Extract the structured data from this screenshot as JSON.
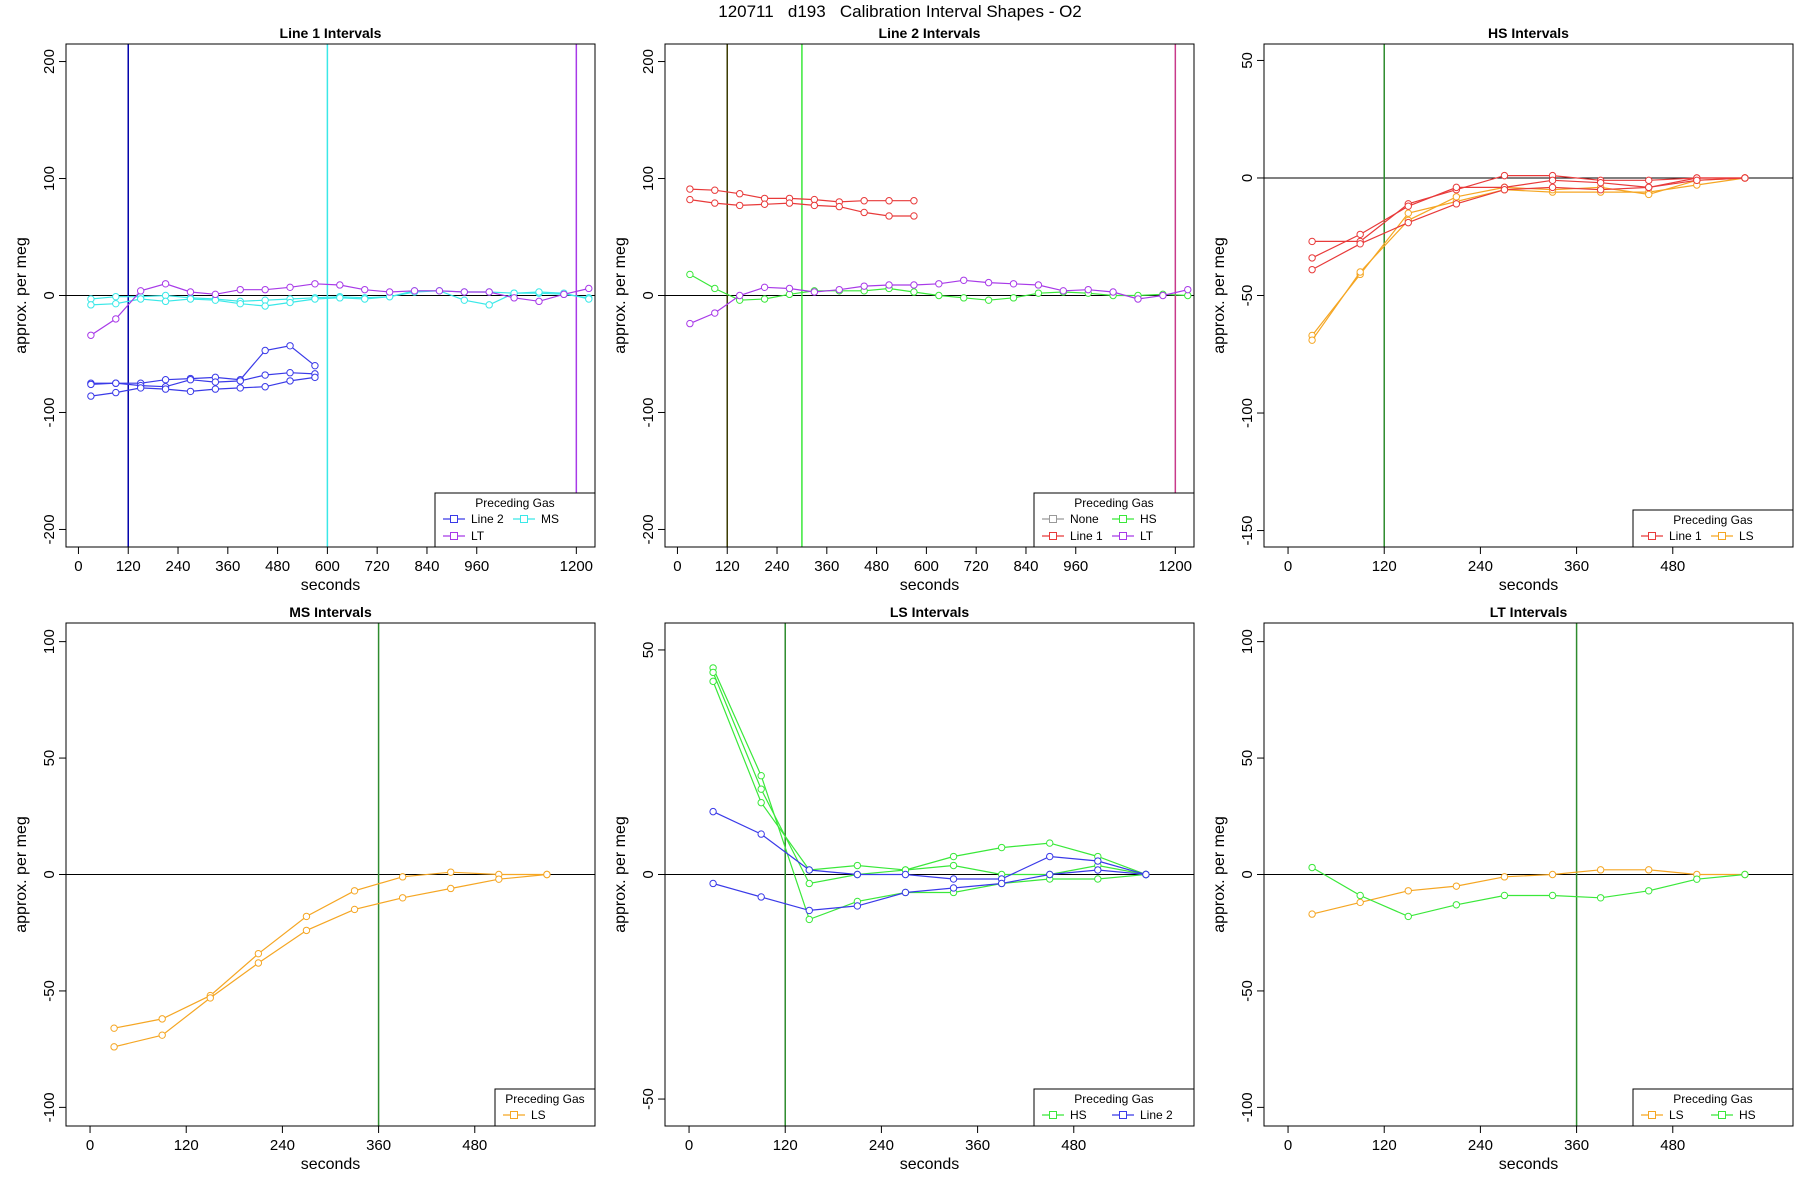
{
  "figure_title": "120711   d193   Calibration Interval Shapes - O2",
  "colors": {
    "Line 1": "#e83a3a",
    "Line 2": "#3a3ae8",
    "HS": "#3ae83a",
    "MS": "#3ae8e8",
    "LS": "#f5a623",
    "LT": "#a83ae8",
    "None": "#999999"
  },
  "chart_data": [
    {
      "type": "line",
      "title": "Line 1 Intervals",
      "xlabel": "seconds",
      "ylabel": "approx. per meg",
      "xlim": [
        -30,
        1245
      ],
      "ylim": [
        -215,
        215
      ],
      "yticks": [
        -200,
        -100,
        0,
        100,
        200
      ],
      "xticks": [
        0,
        120,
        240,
        360,
        480,
        600,
        720,
        840,
        960,
        1200
      ],
      "hline": 0,
      "vlines": [
        {
          "x": 120,
          "color": "#0000aa"
        },
        {
          "x": 600,
          "color": "#3ae8e8"
        },
        {
          "x": 1200,
          "color": "#a83ae8"
        }
      ],
      "legend": {
        "title": "Preceding Gas",
        "position": "bottom-right",
        "cols": 2,
        "items": [
          [
            "Line 2",
            "MS"
          ],
          [
            "LT"
          ]
        ]
      },
      "series": [
        {
          "name": "Line 2",
          "x": [
            30,
            90,
            150,
            210,
            270,
            330,
            390,
            450,
            510,
            570
          ],
          "y": [
            -75,
            -75,
            -75,
            -72,
            -71,
            -70,
            -72,
            -47,
            -43,
            -60
          ]
        },
        {
          "name": "Line 2",
          "x": [
            30,
            90,
            150,
            210,
            270,
            330,
            390,
            450,
            510,
            570
          ],
          "y": [
            -76,
            -75,
            -77,
            -78,
            -72,
            -74,
            -73,
            -68,
            -66,
            -67
          ]
        },
        {
          "name": "Line 2",
          "x": [
            30,
            90,
            150,
            210,
            270,
            330,
            390,
            450,
            510,
            570
          ],
          "y": [
            -86,
            -83,
            -79,
            -80,
            -82,
            -80,
            -79,
            -78,
            -73,
            -70
          ]
        },
        {
          "name": "MS",
          "x": [
            30,
            90,
            150,
            210,
            270,
            330,
            390,
            450,
            510,
            570,
            630,
            690,
            750,
            810,
            870,
            930,
            990,
            1050,
            1110,
            1170,
            1230
          ],
          "y": [
            -3,
            -1,
            -1,
            0,
            -2,
            -3,
            -5,
            -4,
            -3,
            -2,
            -1,
            -2,
            -1,
            4,
            4,
            3,
            3,
            2,
            2,
            1,
            -2
          ]
        },
        {
          "name": "MS",
          "x": [
            30,
            90,
            150,
            210,
            270,
            330,
            390,
            450,
            510,
            570,
            630,
            690,
            750,
            810,
            870,
            930,
            990,
            1050,
            1110,
            1170,
            1230
          ],
          "y": [
            -8,
            -7,
            -3,
            -5,
            -3,
            -4,
            -7,
            -9,
            -6,
            -3,
            -2,
            -3,
            -1,
            3,
            4,
            -4,
            -8,
            2,
            3,
            2,
            -3
          ]
        },
        {
          "name": "LT",
          "x": [
            30,
            90,
            150,
            210,
            270,
            330,
            390,
            450,
            510,
            570,
            630,
            690,
            750,
            810,
            870,
            930,
            990,
            1050,
            1110,
            1170,
            1230
          ],
          "y": [
            -34,
            -20,
            4,
            10,
            3,
            1,
            5,
            5,
            7,
            10,
            9,
            5,
            3,
            4,
            4,
            3,
            3,
            -2,
            -5,
            1,
            6
          ]
        }
      ]
    },
    {
      "type": "line",
      "title": "Line 2 Intervals",
      "xlabel": "seconds",
      "ylabel": "approx. per meg",
      "xlim": [
        -30,
        1245
      ],
      "ylim": [
        -215,
        215
      ],
      "yticks": [
        -200,
        -100,
        0,
        100,
        200
      ],
      "xticks": [
        0,
        120,
        240,
        360,
        480,
        600,
        720,
        840,
        960,
        1200
      ],
      "hline": 0,
      "vlines": [
        {
          "x": 120,
          "color": "#3a3a00"
        },
        {
          "x": 300,
          "color": "#3ae83a"
        },
        {
          "x": 1200,
          "color": "#c83a8a"
        }
      ],
      "legend": {
        "title": "Preceding Gas",
        "position": "bottom-right",
        "cols": 2,
        "items": [
          [
            "None",
            "HS"
          ],
          [
            "Line 1",
            "LT"
          ]
        ]
      },
      "series": [
        {
          "name": "Line 1",
          "x": [
            30,
            90,
            150,
            210,
            270,
            330,
            390,
            450,
            510,
            570
          ],
          "y": [
            91,
            90,
            87,
            83,
            83,
            82,
            80,
            81,
            81,
            81
          ]
        },
        {
          "name": "Line 1",
          "x": [
            30,
            90,
            150,
            210,
            270,
            330,
            390,
            450,
            510,
            570
          ],
          "y": [
            82,
            79,
            77,
            78,
            79,
            77,
            76,
            71,
            68,
            68
          ]
        },
        {
          "name": "HS",
          "x": [
            30,
            90,
            150,
            210,
            270,
            330,
            390,
            450,
            510,
            570,
            630,
            690,
            750,
            810,
            870,
            930,
            990,
            1050,
            1110,
            1170,
            1230
          ],
          "y": [
            18,
            6,
            -4,
            -3,
            1,
            4,
            4,
            4,
            6,
            3,
            0,
            -2,
            -4,
            -2,
            2,
            3,
            2,
            0,
            0,
            1,
            0
          ]
        },
        {
          "name": "LT",
          "x": [
            30,
            90,
            150,
            210,
            270,
            330,
            390,
            450,
            510,
            570,
            630,
            690,
            750,
            810,
            870,
            930,
            990,
            1050,
            1110,
            1170,
            1230
          ],
          "y": [
            -24,
            -15,
            0,
            7,
            6,
            3,
            5,
            8,
            9,
            9,
            10,
            13,
            11,
            10,
            9,
            4,
            5,
            3,
            -3,
            0,
            5
          ]
        }
      ]
    },
    {
      "type": "line",
      "title": "HS Intervals",
      "xlabel": "seconds",
      "ylabel": "approx. per meg",
      "xlim": [
        -30,
        630
      ],
      "ylim": [
        -157,
        57
      ],
      "yticks": [
        -150,
        -100,
        -50,
        0,
        50
      ],
      "xticks": [
        0,
        120,
        240,
        360,
        480
      ],
      "hline": 0,
      "vlines": [
        {
          "x": 120,
          "color": "#2e8b2e"
        }
      ],
      "legend": {
        "title": "Preceding Gas",
        "position": "bottom-right",
        "cols": 2,
        "items": [
          [
            "Line 1",
            "LS"
          ]
        ]
      },
      "series": [
        {
          "name": "LS",
          "x": [
            30,
            90,
            150,
            210,
            270,
            330,
            390,
            450,
            510,
            570
          ],
          "y": [
            -67,
            -41,
            -15,
            -10,
            -5,
            -6,
            -6,
            -6,
            -3,
            0
          ]
        },
        {
          "name": "LS",
          "x": [
            30,
            90,
            150,
            210,
            270,
            330,
            390,
            450,
            510,
            570
          ],
          "y": [
            -69,
            -40,
            -18,
            -8,
            -4,
            -5,
            -4,
            -7,
            -1,
            0
          ]
        },
        {
          "name": "Line 1",
          "x": [
            30,
            90,
            150,
            210,
            270,
            330,
            390,
            450,
            510,
            570
          ],
          "y": [
            -27,
            -27,
            -11,
            -5,
            1,
            1,
            -1,
            -1,
            0,
            0
          ]
        },
        {
          "name": "Line 1",
          "x": [
            30,
            90,
            150,
            210,
            270,
            330,
            390,
            450,
            510,
            570
          ],
          "y": [
            -34,
            -24,
            -12,
            -4,
            -4,
            -1,
            -2,
            -4,
            0,
            0
          ]
        },
        {
          "name": "Line 1",
          "x": [
            30,
            90,
            150,
            210,
            270,
            330,
            390,
            450,
            510,
            570
          ],
          "y": [
            -39,
            -28,
            -19,
            -11,
            -5,
            -4,
            -5,
            -4,
            -1,
            0
          ]
        }
      ]
    },
    {
      "type": "line",
      "title": "MS Intervals",
      "xlabel": "seconds",
      "ylabel": "approx. per meg",
      "xlim": [
        -30,
        630
      ],
      "ylim": [
        -108,
        108
      ],
      "yticks": [
        -100,
        -50,
        0,
        50,
        100
      ],
      "xticks": [
        0,
        120,
        240,
        360,
        480
      ],
      "hline": 0,
      "vlines": [
        {
          "x": 360,
          "color": "#2e8b2e"
        }
      ],
      "legend": {
        "title": "Preceding Gas",
        "position": "bottom-right",
        "cols": 1,
        "items": [
          [
            "LS"
          ]
        ]
      },
      "series": [
        {
          "name": "LS",
          "x": [
            30,
            90,
            150,
            210,
            270,
            330,
            390,
            450,
            510,
            570
          ],
          "y": [
            -66,
            -62,
            -52,
            -34,
            -18,
            -7,
            -1,
            1,
            0,
            0
          ]
        },
        {
          "name": "LS",
          "x": [
            30,
            90,
            150,
            210,
            270,
            330,
            390,
            450,
            510,
            570
          ],
          "y": [
            -74,
            -69,
            -53,
            -38,
            -24,
            -15,
            -10,
            -6,
            -2,
            0
          ]
        }
      ]
    },
    {
      "type": "line",
      "title": "LS Intervals",
      "xlabel": "seconds",
      "ylabel": "approx. per meg",
      "xlim": [
        -30,
        630
      ],
      "ylim": [
        -56,
        56
      ],
      "yticks": [
        -50,
        0,
        50
      ],
      "xticks": [
        0,
        120,
        240,
        360,
        480
      ],
      "hline": 0,
      "vlines": [
        {
          "x": 120,
          "color": "#2e8b2e"
        }
      ],
      "legend": {
        "title": "Preceding Gas",
        "position": "bottom-right",
        "cols": 2,
        "items": [
          [
            "HS",
            "Line 2"
          ]
        ]
      },
      "series": [
        {
          "name": "HS",
          "x": [
            30,
            90,
            150,
            210,
            270,
            330,
            390,
            450,
            510,
            570
          ],
          "y": [
            46,
            22,
            -10,
            -6,
            -4,
            -4,
            -2,
            -1,
            -1,
            0
          ]
        },
        {
          "name": "HS",
          "x": [
            30,
            90,
            150,
            210,
            270,
            330,
            390,
            450,
            510,
            570
          ],
          "y": [
            45,
            19,
            -2,
            0,
            1,
            2,
            0,
            0,
            2,
            0
          ]
        },
        {
          "name": "HS",
          "x": [
            30,
            90,
            150,
            210,
            270,
            330,
            390,
            450,
            510,
            570
          ],
          "y": [
            43,
            16,
            1,
            2,
            1,
            4,
            6,
            7,
            4,
            0
          ]
        },
        {
          "name": "Line 2",
          "x": [
            30,
            90,
            150,
            210,
            270,
            330,
            390,
            450,
            510,
            570
          ],
          "y": [
            14,
            9,
            1,
            0,
            0,
            -1,
            -1,
            4,
            3,
            0
          ]
        },
        {
          "name": "Line 2",
          "x": [
            30,
            90,
            150,
            210,
            270,
            330,
            390,
            450,
            510,
            570
          ],
          "y": [
            -2,
            -5,
            -8,
            -7,
            -4,
            -3,
            -2,
            0,
            1,
            0
          ]
        }
      ]
    },
    {
      "type": "line",
      "title": "LT Intervals",
      "xlabel": "seconds",
      "ylabel": "approx. per meg",
      "xlim": [
        -30,
        630
      ],
      "ylim": [
        -108,
        108
      ],
      "yticks": [
        -100,
        -50,
        0,
        50,
        100
      ],
      "xticks": [
        0,
        120,
        240,
        360,
        480
      ],
      "hline": 0,
      "vlines": [
        {
          "x": 360,
          "color": "#2e8b2e"
        }
      ],
      "legend": {
        "title": "Preceding Gas",
        "position": "bottom-right",
        "cols": 2,
        "items": [
          [
            "LS",
            "HS"
          ]
        ]
      },
      "series": [
        {
          "name": "LS",
          "x": [
            30,
            90,
            150,
            210,
            270,
            330,
            390,
            450,
            510,
            570
          ],
          "y": [
            -17,
            -12,
            -7,
            -5,
            -1,
            0,
            2,
            2,
            0,
            0
          ]
        },
        {
          "name": "HS",
          "x": [
            30,
            90,
            150,
            210,
            270,
            330,
            390,
            450,
            510,
            570
          ],
          "y": [
            3,
            -9,
            -18,
            -13,
            -9,
            -9,
            -10,
            -7,
            -2,
            0
          ]
        }
      ]
    }
  ]
}
